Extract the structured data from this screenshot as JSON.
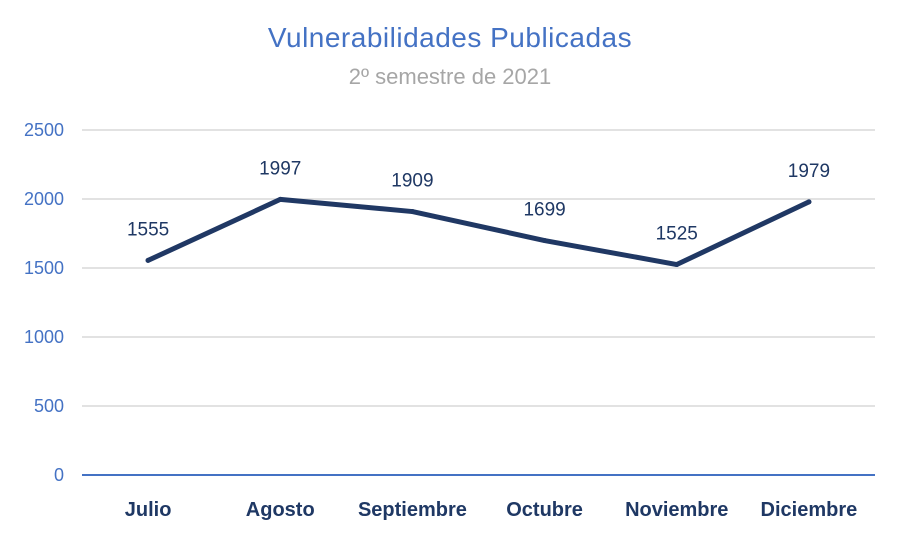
{
  "chart_data": {
    "type": "line",
    "title": "Vulnerabilidades  Publicadas",
    "subtitle": "2º semestre de 2021",
    "categories": [
      "Julio",
      "Agosto",
      "Septiembre",
      "Octubre",
      "Noviembre",
      "Diciembre"
    ],
    "series": [
      {
        "values": [
          1555,
          1997,
          1909,
          1699,
          1525,
          1979
        ],
        "color": "#203864"
      }
    ],
    "data_labels": [
      "1555",
      "1997",
      "1909",
      "1699",
      "1525",
      "1979"
    ],
    "yticks": [
      "0",
      "500",
      "1000",
      "1500",
      "2000",
      "2500"
    ],
    "ylim": [
      0,
      2500
    ],
    "grid": true,
    "legend": "none",
    "colors": {
      "title": "#4472C4",
      "subtitle": "#A6A6A6",
      "axis_labels": "#4472C4",
      "category_labels": "#1F3864",
      "gridline": "#D9D9D9",
      "axis_line": "#4472C4"
    }
  }
}
